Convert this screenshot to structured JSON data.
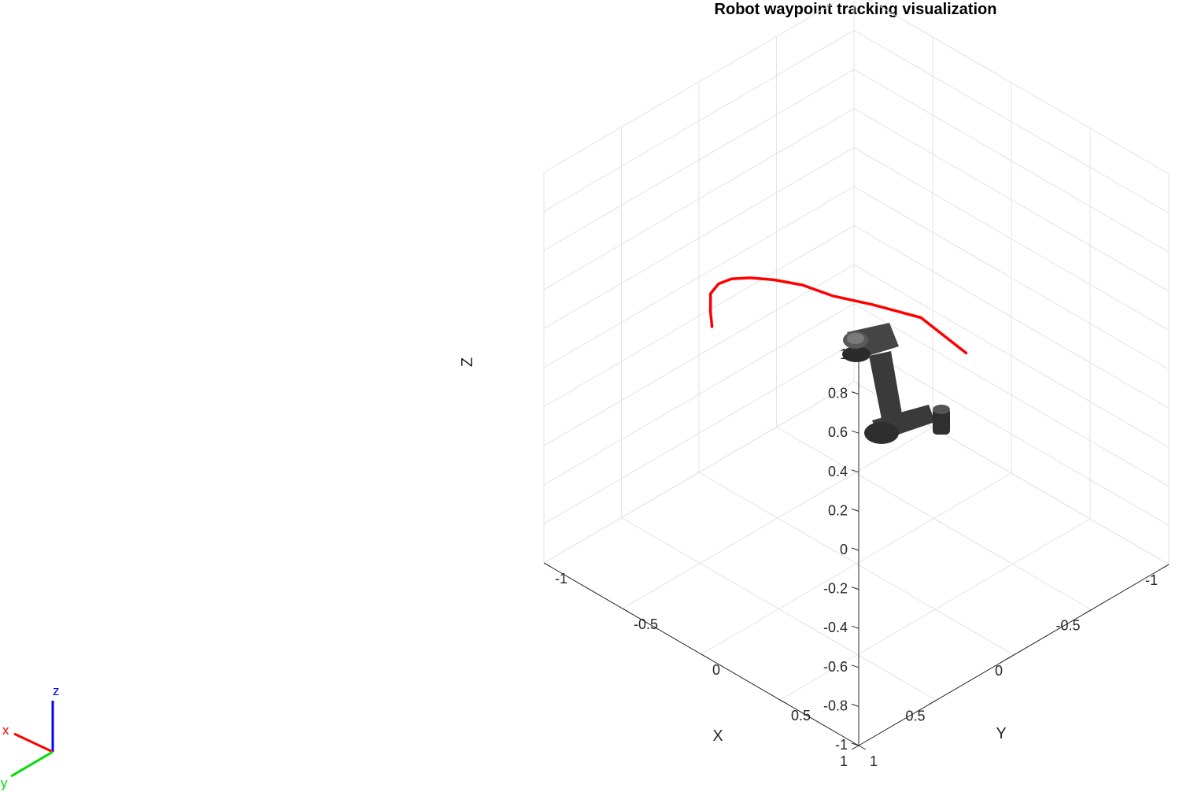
{
  "chart_data": {
    "type": "line",
    "title": "Robot waypoint tracking visualization",
    "xlabel": "X",
    "ylabel": "Y",
    "zlabel": "Z",
    "xlim": [
      -1,
      1
    ],
    "ylim": [
      -1,
      1
    ],
    "zlim": [
      -1,
      1
    ],
    "x_ticks": [
      "-1",
      "-0.5",
      "0",
      "0.5",
      "1"
    ],
    "y_ticks": [
      "-1",
      "-0.5",
      "0",
      "0.5",
      "1"
    ],
    "z_ticks": [
      "-1",
      "-0.8",
      "-0.6",
      "-0.4",
      "-0.2",
      "0",
      "0.2",
      "0.4",
      "0.6",
      "0.8",
      "1"
    ],
    "grid": true,
    "line_color": "#ff0000",
    "series": [
      {
        "points": [
          {
            "x": -0.2,
            "y": 0.5,
            "z": 0.22
          },
          {
            "x": 0.03,
            "y": 0.44,
            "z": 0.48
          },
          {
            "x": 0.2,
            "y": 0.3,
            "z": 0.56
          },
          {
            "x": 0.3,
            "y": 0.15,
            "z": 0.58
          },
          {
            "x": 0.35,
            "y": 0.0,
            "z": 0.59
          },
          {
            "x": 0.38,
            "y": -0.15,
            "z": 0.56
          },
          {
            "x": 0.38,
            "y": -0.3,
            "z": 0.5
          },
          {
            "x": 0.36,
            "y": -0.44,
            "z": 0.42
          },
          {
            "x": 0.32,
            "y": -0.56,
            "z": 0.32
          },
          {
            "x": 0.27,
            "y": -0.66,
            "z": 0.2
          },
          {
            "x": 0.22,
            "y": -0.71,
            "z": 0.06
          },
          {
            "x": 0.2,
            "y": -0.72,
            "z": -0.03
          }
        ]
      }
    ],
    "triad": {
      "x_label": "x",
      "y_label": "y",
      "z_label": "z",
      "x_color": "#ff0000",
      "y_color": "#00dd00",
      "z_color": "#0000ff"
    },
    "robot_color": "#3a3a3a"
  }
}
